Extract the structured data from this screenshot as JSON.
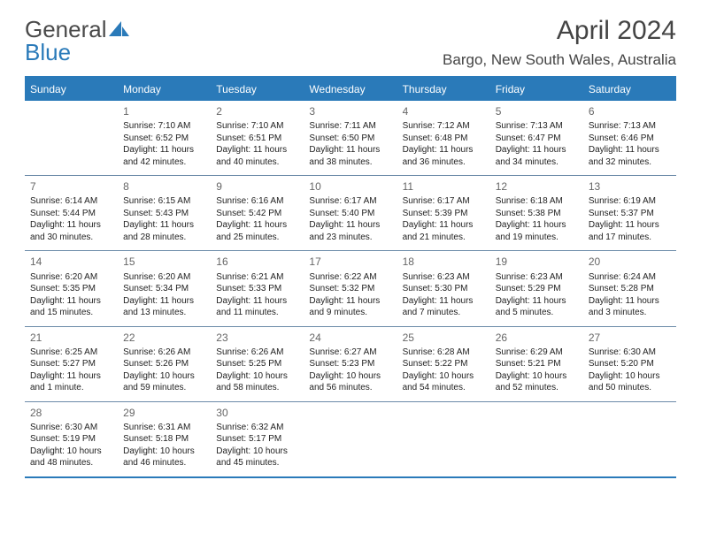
{
  "logo": {
    "word1": "General",
    "word2": "Blue"
  },
  "title": "April 2024",
  "location": "Bargo, New South Wales, Australia",
  "colors": {
    "brand_blue": "#2a7ab9",
    "row_border": "#6b8aa8",
    "text": "#333333",
    "header_text": "#ffffff",
    "logo_gray": "#4a4a4a"
  },
  "day_labels": [
    "Sunday",
    "Monday",
    "Tuesday",
    "Wednesday",
    "Thursday",
    "Friday",
    "Saturday"
  ],
  "label_prefixes": {
    "sunrise": "Sunrise: ",
    "sunset": "Sunset: ",
    "daylight": "Daylight: "
  },
  "weeks": [
    [
      {
        "n": "",
        "sr": "",
        "ss": "",
        "dl": ""
      },
      {
        "n": "1",
        "sr": "7:10 AM",
        "ss": "6:52 PM",
        "dl": "11 hours and 42 minutes."
      },
      {
        "n": "2",
        "sr": "7:10 AM",
        "ss": "6:51 PM",
        "dl": "11 hours and 40 minutes."
      },
      {
        "n": "3",
        "sr": "7:11 AM",
        "ss": "6:50 PM",
        "dl": "11 hours and 38 minutes."
      },
      {
        "n": "4",
        "sr": "7:12 AM",
        "ss": "6:48 PM",
        "dl": "11 hours and 36 minutes."
      },
      {
        "n": "5",
        "sr": "7:13 AM",
        "ss": "6:47 PM",
        "dl": "11 hours and 34 minutes."
      },
      {
        "n": "6",
        "sr": "7:13 AM",
        "ss": "6:46 PM",
        "dl": "11 hours and 32 minutes."
      }
    ],
    [
      {
        "n": "7",
        "sr": "6:14 AM",
        "ss": "5:44 PM",
        "dl": "11 hours and 30 minutes."
      },
      {
        "n": "8",
        "sr": "6:15 AM",
        "ss": "5:43 PM",
        "dl": "11 hours and 28 minutes."
      },
      {
        "n": "9",
        "sr": "6:16 AM",
        "ss": "5:42 PM",
        "dl": "11 hours and 25 minutes."
      },
      {
        "n": "10",
        "sr": "6:17 AM",
        "ss": "5:40 PM",
        "dl": "11 hours and 23 minutes."
      },
      {
        "n": "11",
        "sr": "6:17 AM",
        "ss": "5:39 PM",
        "dl": "11 hours and 21 minutes."
      },
      {
        "n": "12",
        "sr": "6:18 AM",
        "ss": "5:38 PM",
        "dl": "11 hours and 19 minutes."
      },
      {
        "n": "13",
        "sr": "6:19 AM",
        "ss": "5:37 PM",
        "dl": "11 hours and 17 minutes."
      }
    ],
    [
      {
        "n": "14",
        "sr": "6:20 AM",
        "ss": "5:35 PM",
        "dl": "11 hours and 15 minutes."
      },
      {
        "n": "15",
        "sr": "6:20 AM",
        "ss": "5:34 PM",
        "dl": "11 hours and 13 minutes."
      },
      {
        "n": "16",
        "sr": "6:21 AM",
        "ss": "5:33 PM",
        "dl": "11 hours and 11 minutes."
      },
      {
        "n": "17",
        "sr": "6:22 AM",
        "ss": "5:32 PM",
        "dl": "11 hours and 9 minutes."
      },
      {
        "n": "18",
        "sr": "6:23 AM",
        "ss": "5:30 PM",
        "dl": "11 hours and 7 minutes."
      },
      {
        "n": "19",
        "sr": "6:23 AM",
        "ss": "5:29 PM",
        "dl": "11 hours and 5 minutes."
      },
      {
        "n": "20",
        "sr": "6:24 AM",
        "ss": "5:28 PM",
        "dl": "11 hours and 3 minutes."
      }
    ],
    [
      {
        "n": "21",
        "sr": "6:25 AM",
        "ss": "5:27 PM",
        "dl": "11 hours and 1 minute."
      },
      {
        "n": "22",
        "sr": "6:26 AM",
        "ss": "5:26 PM",
        "dl": "10 hours and 59 minutes."
      },
      {
        "n": "23",
        "sr": "6:26 AM",
        "ss": "5:25 PM",
        "dl": "10 hours and 58 minutes."
      },
      {
        "n": "24",
        "sr": "6:27 AM",
        "ss": "5:23 PM",
        "dl": "10 hours and 56 minutes."
      },
      {
        "n": "25",
        "sr": "6:28 AM",
        "ss": "5:22 PM",
        "dl": "10 hours and 54 minutes."
      },
      {
        "n": "26",
        "sr": "6:29 AM",
        "ss": "5:21 PM",
        "dl": "10 hours and 52 minutes."
      },
      {
        "n": "27",
        "sr": "6:30 AM",
        "ss": "5:20 PM",
        "dl": "10 hours and 50 minutes."
      }
    ],
    [
      {
        "n": "28",
        "sr": "6:30 AM",
        "ss": "5:19 PM",
        "dl": "10 hours and 48 minutes."
      },
      {
        "n": "29",
        "sr": "6:31 AM",
        "ss": "5:18 PM",
        "dl": "10 hours and 46 minutes."
      },
      {
        "n": "30",
        "sr": "6:32 AM",
        "ss": "5:17 PM",
        "dl": "10 hours and 45 minutes."
      },
      {
        "n": "",
        "sr": "",
        "ss": "",
        "dl": ""
      },
      {
        "n": "",
        "sr": "",
        "ss": "",
        "dl": ""
      },
      {
        "n": "",
        "sr": "",
        "ss": "",
        "dl": ""
      },
      {
        "n": "",
        "sr": "",
        "ss": "",
        "dl": ""
      }
    ]
  ]
}
